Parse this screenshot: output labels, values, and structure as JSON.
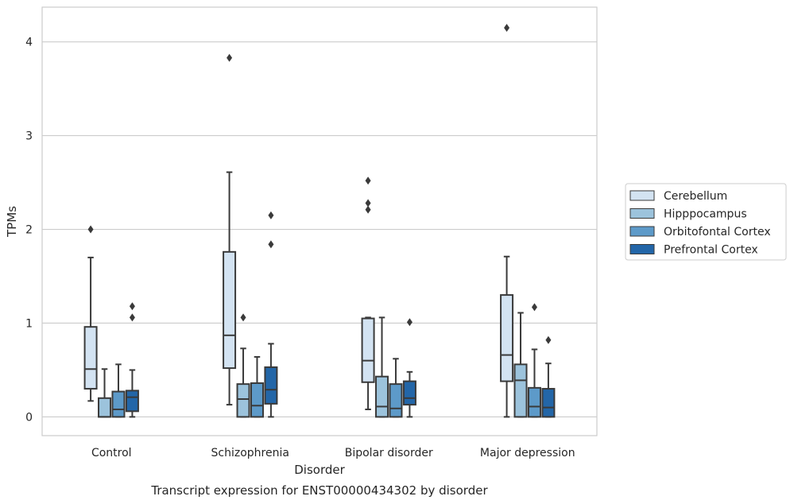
{
  "chart_data": {
    "type": "box",
    "title": "Transcript expression for ENST00000434302 by disorder",
    "xlabel": "Disorder",
    "ylabel": "TPMs",
    "ylim": [
      -0.2,
      4.37
    ],
    "yticks": [
      0,
      1,
      2,
      3,
      4
    ],
    "grid": "horizontal",
    "legend_position": "right",
    "categories": [
      "Control",
      "Schizophrenia",
      "Bipolar disorder",
      "Major depression"
    ],
    "series": [
      {
        "name": "Cerebellum",
        "color": "#d3e3f2",
        "boxes": [
          {
            "whisker_low": 0.17,
            "q1": 0.3,
            "median": 0.51,
            "q3": 0.96,
            "whisker_high": 1.7,
            "outliers": [
              2.0
            ]
          },
          {
            "whisker_low": 0.13,
            "q1": 0.52,
            "median": 0.87,
            "q3": 1.76,
            "whisker_high": 2.61,
            "outliers": [
              3.83
            ]
          },
          {
            "whisker_low": 0.08,
            "q1": 0.37,
            "median": 0.6,
            "q3": 1.05,
            "whisker_high": 1.06,
            "outliers": [
              2.21,
              2.28,
              2.52
            ]
          },
          {
            "whisker_low": 0.0,
            "q1": 0.38,
            "median": 0.66,
            "q3": 1.3,
            "whisker_high": 1.71,
            "outliers": [
              4.15
            ]
          }
        ]
      },
      {
        "name": "Hipppocampus",
        "color": "#9cc3dc",
        "boxes": [
          {
            "whisker_low": 0.0,
            "q1": 0.0,
            "median": 0.0,
            "q3": 0.2,
            "whisker_high": 0.51,
            "outliers": []
          },
          {
            "whisker_low": 0.0,
            "q1": 0.0,
            "median": 0.19,
            "q3": 0.35,
            "whisker_high": 0.73,
            "outliers": [
              1.06
            ]
          },
          {
            "whisker_low": 0.0,
            "q1": 0.0,
            "median": 0.11,
            "q3": 0.43,
            "whisker_high": 1.06,
            "outliers": []
          },
          {
            "whisker_low": 0.0,
            "q1": 0.0,
            "median": 0.39,
            "q3": 0.56,
            "whisker_high": 1.11,
            "outliers": []
          }
        ]
      },
      {
        "name": "Orbitofontal Cortex",
        "color": "#5d9ac9",
        "boxes": [
          {
            "whisker_low": 0.0,
            "q1": 0.0,
            "median": 0.08,
            "q3": 0.27,
            "whisker_high": 0.56,
            "outliers": []
          },
          {
            "whisker_low": 0.0,
            "q1": 0.0,
            "median": 0.12,
            "q3": 0.36,
            "whisker_high": 0.64,
            "outliers": []
          },
          {
            "whisker_low": 0.0,
            "q1": 0.0,
            "median": 0.09,
            "q3": 0.35,
            "whisker_high": 0.62,
            "outliers": []
          },
          {
            "whisker_low": 0.0,
            "q1": 0.0,
            "median": 0.11,
            "q3": 0.31,
            "whisker_high": 0.72,
            "outliers": [
              1.17
            ]
          }
        ]
      },
      {
        "name": "Prefrontal Cortex",
        "color": "#2366a8",
        "boxes": [
          {
            "whisker_low": 0.0,
            "q1": 0.06,
            "median": 0.21,
            "q3": 0.28,
            "whisker_high": 0.5,
            "outliers": [
              1.06,
              1.18
            ]
          },
          {
            "whisker_low": 0.0,
            "q1": 0.14,
            "median": 0.29,
            "q3": 0.53,
            "whisker_high": 0.78,
            "outliers": [
              1.84,
              2.15
            ]
          },
          {
            "whisker_low": 0.0,
            "q1": 0.13,
            "median": 0.2,
            "q3": 0.38,
            "whisker_high": 0.48,
            "outliers": [
              1.01
            ]
          },
          {
            "whisker_low": 0.0,
            "q1": 0.0,
            "median": 0.1,
            "q3": 0.3,
            "whisker_high": 0.57,
            "outliers": [
              0.82
            ]
          }
        ]
      }
    ]
  }
}
